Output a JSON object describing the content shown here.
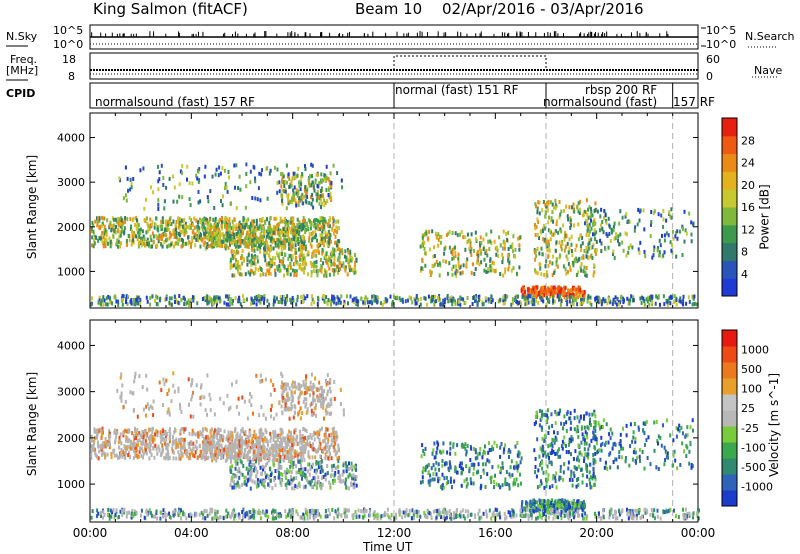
{
  "header": {
    "station": "King Salmon (fitACF)",
    "beam": "Beam 10",
    "dates": "02/Apr/2016 - 03/Apr/2016"
  },
  "strips": {
    "nsky_label": "N.Sky",
    "nsearch_label": "N.Search",
    "freq_label_1": "Freq.",
    "freq_label_2": "[MHz]",
    "nave_label": "Nave",
    "cpid_label": "CPID",
    "left_ticks": [
      "10^5",
      "10^0"
    ],
    "right_ticks": [
      "10^5",
      "10^0"
    ],
    "freq_ticks": [
      "18",
      "8"
    ],
    "nave_ticks": [
      "60",
      "0"
    ],
    "cpid_segments": [
      {
        "label": "normalsound (fast) 157 RF",
        "start": 0.0,
        "end": 12.0
      },
      {
        "label": "normal (fast) 151 RF",
        "start": 12.0,
        "end": 18.0
      },
      {
        "label": "rbsp 200 RF",
        "start": 18.0,
        "end": 23.0
      },
      {
        "label": "normalsound (fast)",
        "start": 18.0,
        "end": 23.0
      },
      {
        "label": "157 RF",
        "start": 23.0,
        "end": 24.0
      }
    ]
  },
  "chart_data": [
    {
      "type": "heatmap",
      "name": "power",
      "ylabel": "Slant Range [km]",
      "xlabel": "Time UT",
      "xlim": [
        0,
        24
      ],
      "ylim": [
        180,
        4550
      ],
      "yticks": [
        1000,
        2000,
        3000,
        4000
      ],
      "xticks": [
        "00:00",
        "04:00",
        "08:00",
        "12:00",
        "16:00",
        "20:00",
        "00:00"
      ],
      "dashed_lines_hours": [
        12.0,
        18.0,
        23.0
      ],
      "colorbar": {
        "label": "Power [dB]",
        "ticks": [
          "28",
          "24",
          "20",
          "16",
          "12",
          "8",
          "4"
        ],
        "colors": [
          "#1f3bd6",
          "#2a55b8",
          "#2f7a6a",
          "#3c9a4e",
          "#7fb83a",
          "#c8c830",
          "#e3b21c",
          "#ec8a18",
          "#ee5a14",
          "#e82010"
        ]
      }
    },
    {
      "type": "heatmap",
      "name": "velocity",
      "ylabel": "Slant Range [km]",
      "xlabel": "Time UT",
      "xlim": [
        0,
        24
      ],
      "ylim": [
        180,
        4550
      ],
      "yticks": [
        1000,
        2000,
        3000,
        4000
      ],
      "xticks": [
        "00:00",
        "04:00",
        "08:00",
        "12:00",
        "16:00",
        "20:00",
        "00:00"
      ],
      "dashed_lines_hours": [
        12.0,
        18.0,
        23.0
      ],
      "colorbar": {
        "label": "Velocity [m s^-1]",
        "ticks": [
          "1000",
          "500",
          "100",
          "25",
          "-25",
          "-100",
          "-500",
          "-1000"
        ],
        "colors": [
          "#1b3dcc",
          "#2d63b8",
          "#2f8a70",
          "#3aa84c",
          "#78cc3c",
          "#b8b8b8",
          "#c4c4c4",
          "#e8a02a",
          "#ec7a1c",
          "#ee4a14",
          "#e61a10"
        ]
      }
    }
  ],
  "colors": {
    "grey_scatter": "#b4b4b4"
  }
}
